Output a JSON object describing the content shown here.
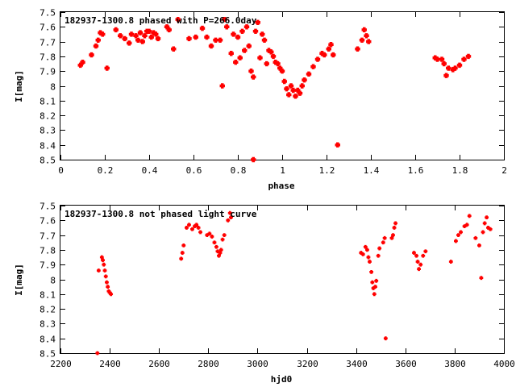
{
  "chart_data": [
    {
      "type": "scatter",
      "title": "182937-1300.8 phased with P=266.0day",
      "xlabel": "phase",
      "ylabel": "I[mag]",
      "xlim": [
        0,
        2
      ],
      "ylim": [
        7.5,
        8.5
      ],
      "y_inverted": true,
      "grid": false,
      "x_ticks": [
        "0",
        "0.2",
        "0.4",
        "0.6",
        "0.8",
        "1",
        "1.2",
        "1.4",
        "1.6",
        "1.8",
        "2"
      ],
      "y_ticks": [
        "7.5",
        "7.6",
        "7.7",
        "7.8",
        "7.9",
        "8",
        "8.1",
        "8.2",
        "8.3",
        "8.4",
        "8.5"
      ],
      "color": "#ff0000",
      "points": [
        [
          0.09,
          7.86
        ],
        [
          0.1,
          7.84
        ],
        [
          0.14,
          7.79
        ],
        [
          0.16,
          7.73
        ],
        [
          0.17,
          7.69
        ],
        [
          0.18,
          7.64
        ],
        [
          0.19,
          7.65
        ],
        [
          0.21,
          7.88
        ],
        [
          0.25,
          7.62
        ],
        [
          0.27,
          7.66
        ],
        [
          0.29,
          7.68
        ],
        [
          0.31,
          7.71
        ],
        [
          0.32,
          7.65
        ],
        [
          0.34,
          7.66
        ],
        [
          0.35,
          7.69
        ],
        [
          0.36,
          7.64
        ],
        [
          0.37,
          7.7
        ],
        [
          0.38,
          7.66
        ],
        [
          0.39,
          7.63
        ],
        [
          0.4,
          7.63
        ],
        [
          0.41,
          7.67
        ],
        [
          0.42,
          7.64
        ],
        [
          0.43,
          7.65
        ],
        [
          0.44,
          7.68
        ],
        [
          0.48,
          7.6
        ],
        [
          0.49,
          7.62
        ],
        [
          0.51,
          7.75
        ],
        [
          0.53,
          7.55
        ],
        [
          0.58,
          7.68
        ],
        [
          0.61,
          7.67
        ],
        [
          0.64,
          7.61
        ],
        [
          0.66,
          7.67
        ],
        [
          0.68,
          7.73
        ],
        [
          0.7,
          7.69
        ],
        [
          0.72,
          7.69
        ],
        [
          0.73,
          8.0
        ],
        [
          0.74,
          7.55
        ],
        [
          0.75,
          7.6
        ],
        [
          0.77,
          7.78
        ],
        [
          0.78,
          7.65
        ],
        [
          0.79,
          7.84
        ],
        [
          0.8,
          7.67
        ],
        [
          0.81,
          7.81
        ],
        [
          0.82,
          7.63
        ],
        [
          0.83,
          7.76
        ],
        [
          0.84,
          7.6
        ],
        [
          0.85,
          7.73
        ],
        [
          0.86,
          7.9
        ],
        [
          0.87,
          7.94
        ],
        [
          0.87,
          8.5
        ],
        [
          0.88,
          7.63
        ],
        [
          0.89,
          7.57
        ],
        [
          0.9,
          7.81
        ],
        [
          0.91,
          7.65
        ],
        [
          0.92,
          7.69
        ],
        [
          0.93,
          7.85
        ],
        [
          0.94,
          7.76
        ],
        [
          0.95,
          7.77
        ],
        [
          0.96,
          7.8
        ],
        [
          0.97,
          7.84
        ],
        [
          0.98,
          7.85
        ],
        [
          0.99,
          7.88
        ],
        [
          1.0,
          7.9
        ],
        [
          1.01,
          7.97
        ],
        [
          1.02,
          8.02
        ],
        [
          1.03,
          8.06
        ],
        [
          1.04,
          8.0
        ],
        [
          1.05,
          8.03
        ],
        [
          1.06,
          8.07
        ],
        [
          1.07,
          8.03
        ],
        [
          1.08,
          8.05
        ],
        [
          1.09,
          8.0
        ],
        [
          1.1,
          7.96
        ],
        [
          1.12,
          7.92
        ],
        [
          1.14,
          7.87
        ],
        [
          1.16,
          7.82
        ],
        [
          1.18,
          7.78
        ],
        [
          1.19,
          7.79
        ],
        [
          1.21,
          7.75
        ],
        [
          1.22,
          7.72
        ],
        [
          1.23,
          7.79
        ],
        [
          1.25,
          8.4
        ],
        [
          1.34,
          7.75
        ],
        [
          1.36,
          7.69
        ],
        [
          1.37,
          7.62
        ],
        [
          1.38,
          7.66
        ],
        [
          1.39,
          7.7
        ],
        [
          1.69,
          7.81
        ],
        [
          1.7,
          7.82
        ],
        [
          1.72,
          7.82
        ],
        [
          1.73,
          7.85
        ],
        [
          1.74,
          7.93
        ],
        [
          1.75,
          7.88
        ],
        [
          1.77,
          7.89
        ],
        [
          1.78,
          7.88
        ],
        [
          1.8,
          7.86
        ],
        [
          1.82,
          7.82
        ],
        [
          1.84,
          7.8
        ]
      ]
    },
    {
      "type": "scatter",
      "title": "182937-1300.8 not phased light curve",
      "xlabel": "hjd0",
      "ylabel": "I[mag]",
      "xlim": [
        2200,
        4000
      ],
      "ylim": [
        7.5,
        8.5
      ],
      "y_inverted": true,
      "grid": false,
      "x_ticks": [
        "2200",
        "2400",
        "2600",
        "2800",
        "3000",
        "3200",
        "3400",
        "3600",
        "3800",
        "4000"
      ],
      "y_ticks": [
        "7.5",
        "7.6",
        "7.7",
        "7.8",
        "7.9",
        "8",
        "8.1",
        "8.2",
        "8.3",
        "8.4",
        "8.5"
      ],
      "color": "#ff0000",
      "points": [
        [
          2350,
          8.5
        ],
        [
          2355,
          7.94
        ],
        [
          2368,
          7.85
        ],
        [
          2372,
          7.87
        ],
        [
          2376,
          7.9
        ],
        [
          2380,
          7.94
        ],
        [
          2384,
          7.98
        ],
        [
          2388,
          8.02
        ],
        [
          2392,
          8.05
        ],
        [
          2396,
          8.08
        ],
        [
          2400,
          8.09
        ],
        [
          2405,
          8.1
        ],
        [
          2690,
          7.86
        ],
        [
          2695,
          7.82
        ],
        [
          2700,
          7.77
        ],
        [
          2712,
          7.65
        ],
        [
          2722,
          7.63
        ],
        [
          2735,
          7.66
        ],
        [
          2745,
          7.64
        ],
        [
          2752,
          7.63
        ],
        [
          2760,
          7.65
        ],
        [
          2768,
          7.68
        ],
        [
          2795,
          7.7
        ],
        [
          2805,
          7.69
        ],
        [
          2815,
          7.71
        ],
        [
          2825,
          7.75
        ],
        [
          2833,
          7.78
        ],
        [
          2838,
          7.81
        ],
        [
          2843,
          7.84
        ],
        [
          2848,
          7.82
        ],
        [
          2852,
          7.8
        ],
        [
          2858,
          7.73
        ],
        [
          2865,
          7.7
        ],
        [
          2880,
          7.6
        ],
        [
          2888,
          7.55
        ],
        [
          2892,
          7.58
        ],
        [
          3420,
          7.82
        ],
        [
          3428,
          7.83
        ],
        [
          3438,
          7.78
        ],
        [
          3445,
          7.8
        ],
        [
          3450,
          7.85
        ],
        [
          3455,
          7.88
        ],
        [
          3462,
          7.95
        ],
        [
          3466,
          8.02
        ],
        [
          3470,
          8.06
        ],
        [
          3474,
          8.1
        ],
        [
          3478,
          8.05
        ],
        [
          3482,
          8.01
        ],
        [
          3490,
          7.84
        ],
        [
          3495,
          7.79
        ],
        [
          3510,
          7.75
        ],
        [
          3516,
          7.72
        ],
        [
          3520,
          8.4
        ],
        [
          3545,
          7.72
        ],
        [
          3550,
          7.7
        ],
        [
          3555,
          7.65
        ],
        [
          3560,
          7.62
        ],
        [
          3635,
          7.82
        ],
        [
          3645,
          7.84
        ],
        [
          3650,
          7.88
        ],
        [
          3655,
          7.93
        ],
        [
          3662,
          7.9
        ],
        [
          3672,
          7.84
        ],
        [
          3682,
          7.81
        ],
        [
          3785,
          7.88
        ],
        [
          3805,
          7.74
        ],
        [
          3815,
          7.7
        ],
        [
          3825,
          7.68
        ],
        [
          3840,
          7.64
        ],
        [
          3850,
          7.63
        ],
        [
          3860,
          7.57
        ],
        [
          3885,
          7.72
        ],
        [
          3900,
          7.77
        ],
        [
          3908,
          7.99
        ],
        [
          3915,
          7.68
        ],
        [
          3922,
          7.62
        ],
        [
          3930,
          7.58
        ],
        [
          3936,
          7.65
        ],
        [
          3945,
          7.66
        ]
      ]
    }
  ]
}
